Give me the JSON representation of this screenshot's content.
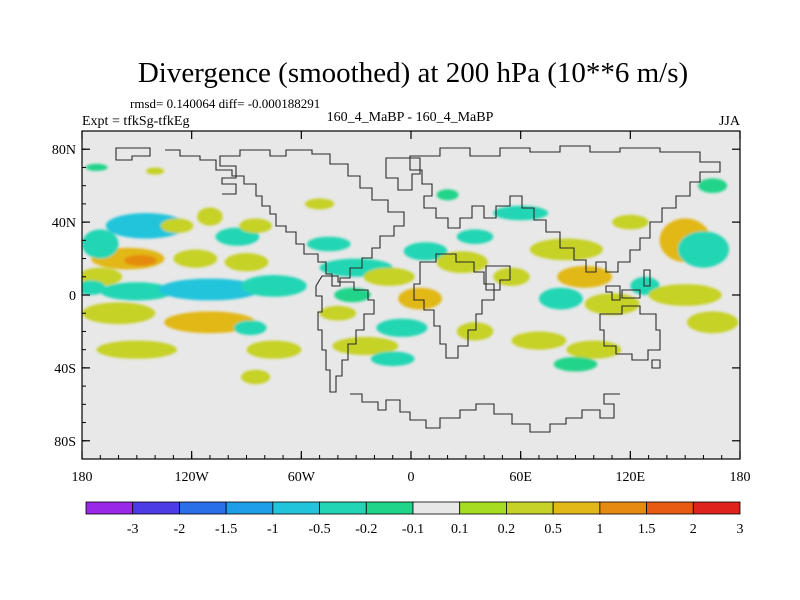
{
  "chart_data": {
    "type": "heatmap",
    "title": "Divergence (smoothed) at 200 hPa (10**6 m/s)",
    "stats_text": "rmsd= 0.140064  diff= -0.000188291",
    "experiment_label": "Expt = tfkSg-tfkEg",
    "case_label": "160_4_MaBP - 160_4_MaBP",
    "season": "JJA",
    "x_ticks": [
      {
        "value": -180,
        "label": "180"
      },
      {
        "value": -120,
        "label": "120W"
      },
      {
        "value": -60,
        "label": "60W"
      },
      {
        "value": 0,
        "label": "0"
      },
      {
        "value": 60,
        "label": "60E"
      },
      {
        "value": 120,
        "label": "120E"
      },
      {
        "value": 180,
        "label": "180"
      }
    ],
    "y_ticks": [
      {
        "value": 80,
        "label": "80N"
      },
      {
        "value": 40,
        "label": "40N"
      },
      {
        "value": 0,
        "label": "0"
      },
      {
        "value": -40,
        "label": "40S"
      },
      {
        "value": -80,
        "label": "80S"
      }
    ],
    "xlim": [
      -180,
      180
    ],
    "ylim": [
      -90,
      90
    ],
    "colorbar": {
      "labels": [
        "-3",
        "-2",
        "-1.5",
        "-1",
        "-0.5",
        "-0.2",
        "-0.1",
        "0.1",
        "0.2",
        "0.5",
        "1",
        "1.5",
        "2",
        "3"
      ],
      "colors": [
        "#9a28e8",
        "#4b3ce6",
        "#2a6ee8",
        "#1e9ee6",
        "#22c4dc",
        "#22d6b4",
        "#20d48a",
        "#e8e8e8",
        "#a6dc22",
        "#c6d228",
        "#e2b818",
        "#e68a10",
        "#e85a12",
        "#e0221c"
      ]
    },
    "background_color": "#e8e8e8",
    "blobs": [
      {
        "lon": -155,
        "lat": 20,
        "rlon": 20,
        "rlat": 6,
        "value": 0.6
      },
      {
        "lon": -148,
        "lat": 19,
        "rlon": 9,
        "rlat": 3,
        "value": 1.2
      },
      {
        "lon": -170,
        "lat": 28,
        "rlon": 10,
        "rlat": 8,
        "value": -0.4
      },
      {
        "lon": -145,
        "lat": 38,
        "rlon": 22,
        "rlat": 7,
        "value": -0.6
      },
      {
        "lon": -128,
        "lat": 38,
        "rlon": 9,
        "rlat": 4,
        "value": 0.3
      },
      {
        "lon": -110,
        "lat": 43,
        "rlon": 7,
        "rlat": 5,
        "value": 0.2
      },
      {
        "lon": -95,
        "lat": 32,
        "rlon": 12,
        "rlat": 5,
        "value": -0.4
      },
      {
        "lon": -85,
        "lat": 38,
        "rlon": 9,
        "rlat": 4,
        "value": 0.3
      },
      {
        "lon": -118,
        "lat": 20,
        "rlon": 12,
        "rlat": 5,
        "value": 0.4
      },
      {
        "lon": -90,
        "lat": 18,
        "rlon": 12,
        "rlat": 5,
        "value": 0.3
      },
      {
        "lon": -170,
        "lat": 10,
        "rlon": 12,
        "rlat": 5,
        "value": 0.3
      },
      {
        "lon": -175,
        "lat": 4,
        "rlon": 8,
        "rlat": 4,
        "value": -0.4
      },
      {
        "lon": -150,
        "lat": 2,
        "rlon": 20,
        "rlat": 5,
        "value": -0.4
      },
      {
        "lon": -110,
        "lat": 3,
        "rlon": 28,
        "rlat": 6,
        "value": -0.6
      },
      {
        "lon": -75,
        "lat": 5,
        "rlon": 18,
        "rlat": 6,
        "value": -0.4
      },
      {
        "lon": -160,
        "lat": -10,
        "rlon": 20,
        "rlat": 6,
        "value": 0.4
      },
      {
        "lon": -110,
        "lat": -15,
        "rlon": 25,
        "rlat": 6,
        "value": 0.6
      },
      {
        "lon": -88,
        "lat": -18,
        "rlon": 9,
        "rlat": 4,
        "value": -0.3
      },
      {
        "lon": -150,
        "lat": -30,
        "rlon": 22,
        "rlat": 5,
        "value": 0.3
      },
      {
        "lon": -75,
        "lat": -30,
        "rlon": 15,
        "rlat": 5,
        "value": 0.4
      },
      {
        "lon": -85,
        "lat": -45,
        "rlon": 8,
        "rlat": 4,
        "value": 0.2
      },
      {
        "lon": -45,
        "lat": 28,
        "rlon": 12,
        "rlat": 4,
        "value": -0.3
      },
      {
        "lon": -30,
        "lat": 15,
        "rlon": 20,
        "rlat": 5,
        "value": -0.5
      },
      {
        "lon": -12,
        "lat": 10,
        "rlon": 14,
        "rlat": 5,
        "value": 0.3
      },
      {
        "lon": 8,
        "lat": 24,
        "rlon": 12,
        "rlat": 5,
        "value": -0.4
      },
      {
        "lon": 28,
        "lat": 18,
        "rlon": 14,
        "rlat": 6,
        "value": 0.4
      },
      {
        "lon": -32,
        "lat": 0,
        "rlon": 10,
        "rlat": 4,
        "value": -0.2
      },
      {
        "lon": 5,
        "lat": -2,
        "rlon": 12,
        "rlat": 6,
        "value": 0.6
      },
      {
        "lon": -5,
        "lat": -18,
        "rlon": 14,
        "rlat": 5,
        "value": -0.4
      },
      {
        "lon": -40,
        "lat": -10,
        "rlon": 10,
        "rlat": 4,
        "value": 0.2
      },
      {
        "lon": -25,
        "lat": -28,
        "rlon": 18,
        "rlat": 5,
        "value": 0.3
      },
      {
        "lon": -10,
        "lat": -35,
        "rlon": 12,
        "rlat": 4,
        "value": -0.3
      },
      {
        "lon": 35,
        "lat": -20,
        "rlon": 10,
        "rlat": 5,
        "value": 0.4
      },
      {
        "lon": 55,
        "lat": 10,
        "rlon": 10,
        "rlat": 5,
        "value": 0.3
      },
      {
        "lon": 35,
        "lat": 32,
        "rlon": 10,
        "rlat": 4,
        "value": -0.3
      },
      {
        "lon": 85,
        "lat": 25,
        "rlon": 20,
        "rlat": 6,
        "value": 0.4
      },
      {
        "lon": 95,
        "lat": 10,
        "rlon": 15,
        "rlat": 6,
        "value": 0.5
      },
      {
        "lon": 82,
        "lat": -2,
        "rlon": 12,
        "rlat": 6,
        "value": -0.4
      },
      {
        "lon": 110,
        "lat": -5,
        "rlon": 15,
        "rlat": 6,
        "value": 0.4
      },
      {
        "lon": 128,
        "lat": 5,
        "rlon": 8,
        "rlat": 5,
        "value": -0.3
      },
      {
        "lon": 70,
        "lat": -25,
        "rlon": 15,
        "rlat": 5,
        "value": 0.3
      },
      {
        "lon": 100,
        "lat": -30,
        "rlon": 15,
        "rlat": 5,
        "value": 0.3
      },
      {
        "lon": 90,
        "lat": -38,
        "rlon": 12,
        "rlat": 4,
        "value": -0.2
      },
      {
        "lon": 150,
        "lat": 30,
        "rlon": 14,
        "rlat": 12,
        "value": 0.5
      },
      {
        "lon": 160,
        "lat": 25,
        "rlon": 14,
        "rlat": 10,
        "value": -0.5
      },
      {
        "lon": 150,
        "lat": 0,
        "rlon": 20,
        "rlat": 6,
        "value": 0.3
      },
      {
        "lon": 165,
        "lat": -15,
        "rlon": 14,
        "rlat": 6,
        "value": 0.4
      },
      {
        "lon": 60,
        "lat": 45,
        "rlon": 15,
        "rlat": 4,
        "value": -0.3
      },
      {
        "lon": 120,
        "lat": 40,
        "rlon": 10,
        "rlat": 4,
        "value": 0.2
      },
      {
        "lon": 165,
        "lat": 60,
        "rlon": 8,
        "rlat": 4,
        "value": -0.2
      },
      {
        "lon": 20,
        "lat": 55,
        "rlon": 6,
        "rlat": 3,
        "value": -0.2
      },
      {
        "lon": -172,
        "lat": 70,
        "rlon": 6,
        "rlat": 2,
        "value": -0.2
      },
      {
        "lon": -140,
        "lat": 68,
        "rlon": 5,
        "rlat": 2,
        "value": 0.2
      },
      {
        "lon": -50,
        "lat": 50,
        "rlon": 8,
        "rlat": 3,
        "value": 0.2
      }
    ]
  }
}
